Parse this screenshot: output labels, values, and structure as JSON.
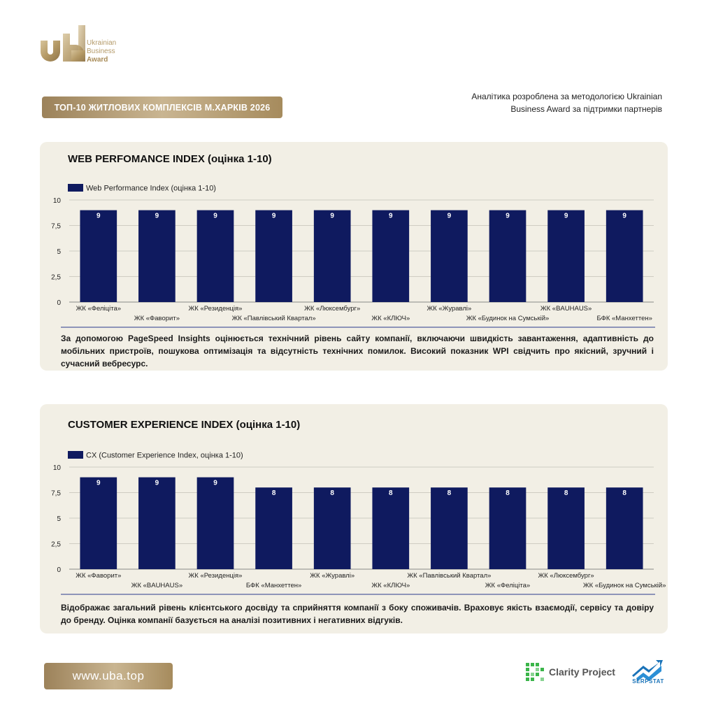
{
  "header": {
    "logo_line1": "Ukrainian",
    "logo_line2": "Business",
    "logo_line3": "Award",
    "title": "ТОП-10 ЖИТЛОВИХ КОМПЛЕКСІВ М.ХАРКІВ 2026",
    "note_line1": "Аналітика розроблена за методологією Ukrainian",
    "note_line2": "Business Award за підтримки партнерів"
  },
  "chart_data": [
    {
      "type": "bar",
      "title": "WEB PERFOMANCE INDEX (оцінка 1-10)",
      "ylim": [
        0,
        10
      ],
      "yticks": [
        "0",
        "2,5",
        "5",
        "7,5",
        "10"
      ],
      "legend_placement": "top-left",
      "grid": true,
      "categories": [
        "ЖК «Феліціта»",
        "ЖК «Фаворит»",
        "ЖК «Резиденція»",
        "ЖК «Павлівський Квартал»",
        "ЖК «Люксембург»",
        "ЖК «КЛЮЧ»",
        "ЖК «Журавлі»",
        "ЖК «Будинок на Сумській»",
        "ЖК «BAUHAUS»",
        "БФК «Манхеттен»"
      ],
      "series": [
        {
          "name": "Web Performance Index (оцінка 1-10)",
          "color": "#0f1a5f",
          "values": [
            9,
            9,
            9,
            9,
            9,
            9,
            9,
            9,
            9,
            9
          ],
          "labels": [
            "9",
            "9",
            "9",
            "9",
            "9",
            "9",
            "9",
            "9",
            "9",
            "9"
          ]
        }
      ],
      "description": "За допомогою PageSpeed Insights оцінюється технічний рівень сайту компанії, включаючи швидкість завантаження, адаптивність до мобільних пристроїв, пошукова оптимізація та відсутність технічних помилок. Високий показник WPI свідчить про якісний, зручний і сучасний вебресурс."
    },
    {
      "type": "bar",
      "title": "CUSTOMER EXPERIENCE INDEX (оцінка 1-10)",
      "ylim": [
        0,
        10
      ],
      "yticks": [
        "0",
        "2,5",
        "5",
        "7,5",
        "10"
      ],
      "legend_placement": "top-left",
      "grid": true,
      "categories": [
        "ЖК «Фаворит»",
        "ЖК «BAUHAUS»",
        "ЖК «Резиденція»",
        "БФК «Манхеттен»",
        "ЖК «Журавлі»",
        "ЖК «КЛЮЧ»",
        "ЖК «Павлівський Квартал»",
        "ЖК «Феліціта»",
        "ЖК «Люксембург»",
        "ЖК «Будинок на Сумській»"
      ],
      "series": [
        {
          "name": "CX (Customer Experience Index, оцінка 1-10)",
          "color": "#0f1a5f",
          "values": [
            9,
            9,
            9,
            8,
            8,
            8,
            8,
            8,
            8,
            8
          ],
          "labels": [
            "9",
            "9",
            "9",
            "8",
            "8",
            "8",
            "8",
            "8",
            "8",
            "8"
          ]
        }
      ],
      "description": "Відображає загальний рівень клієнтського досвіду та сприйняття компанії з боку споживачів. Враховує якість взаємодії, сервісу та довіру до бренду. Оцінка компанії базується на аналізі позитивних і негативних відгуків."
    }
  ],
  "footer": {
    "site": "www.uba.top",
    "partner1": "Clarity Project",
    "partner2": "SERPSTAT"
  }
}
